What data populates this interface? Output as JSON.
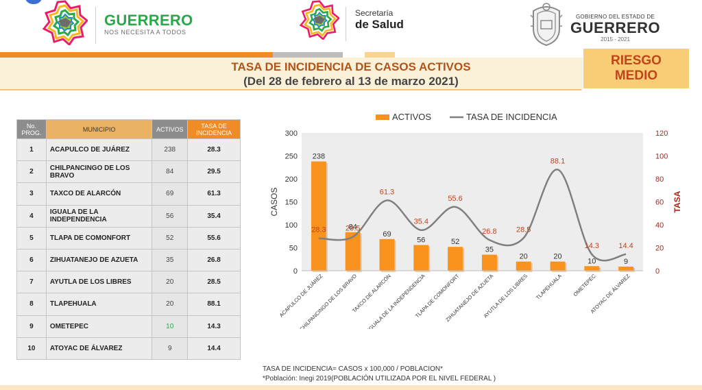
{
  "header": {
    "brand_title": "GUERRERO",
    "brand_sub": "NOS NECESITA A TODOS",
    "secretaria_line1": "Secretaría",
    "secretaria_line2": "de Salud",
    "gob_line1": "GOBIERNO DEL ESTADO DE",
    "gob_line2": "GUERRERO",
    "gob_line3": "2015 - 2021"
  },
  "title": {
    "line1": "TASA DE INCIDENCIA DE CASOS ACTIVOS",
    "line2": "(Del 28 de febrero al 13 de marzo 2021)"
  },
  "risk": {
    "line1": "RIESGO",
    "line2": "MEDIO"
  },
  "table": {
    "headers": {
      "no_1": "No.",
      "no_2": "PROG.",
      "municipio": "MUNICIPIO",
      "activos": "ACTIVOS",
      "tasa_1": "TASA DE",
      "tasa_2": "INCIDENCIA"
    },
    "rows": [
      {
        "no": "1",
        "municipio": "ACAPULCO DE JUÁREZ",
        "activos": "238",
        "tasa": "28.3"
      },
      {
        "no": "2",
        "municipio": "CHILPANCINGO DE LOS BRAVO",
        "activos": "84",
        "tasa": "29.5"
      },
      {
        "no": "3",
        "municipio": "TAXCO DE ALARCÓN",
        "activos": "69",
        "tasa": "61.3"
      },
      {
        "no": "4",
        "municipio": "IGUALA DE LA INDEPENDENCIA",
        "activos": "56",
        "tasa": "35.4"
      },
      {
        "no": "5",
        "municipio": "TLAPA DE COMONFORT",
        "activos": "52",
        "tasa": "55.6"
      },
      {
        "no": "6",
        "municipio": "ZIHUATANEJO DE AZUETA",
        "activos": "35",
        "tasa": "26.8"
      },
      {
        "no": "7",
        "municipio": "AYUTLA DE LOS LIBRES",
        "activos": "20",
        "tasa": "28.5"
      },
      {
        "no": "8",
        "municipio": "TLAPEHUALA",
        "activos": "20",
        "tasa": "88.1"
      },
      {
        "no": "9",
        "municipio": "OMETEPEC",
        "activos": "10",
        "tasa": "14.3"
      },
      {
        "no": "10",
        "municipio": "ATOYAC DE ÁLVAREZ",
        "activos": "9",
        "tasa": "14.4"
      }
    ]
  },
  "chart_data": {
    "type": "bar",
    "categories": [
      "ACAPULCO DE JUÁREZ",
      "CHILPANCINGO DE LOS BRAVO",
      "TAXCO DE ALARCÓN",
      "IGUALA DE LA INDEPENDENCIA",
      "TLAPA DE COMONFORT",
      "ZIHUATANEJO DE AZUETA",
      "AYUTLA DE LOS LIBRES",
      "TLAPEHUALA",
      "OMETEPEC",
      "ATOYAC DE ÁLVAREZ"
    ],
    "series": [
      {
        "name": "ACTIVOS",
        "type": "bar",
        "axis": "left",
        "values": [
          238,
          84,
          69,
          56,
          52,
          35,
          20,
          20,
          10,
          9
        ],
        "color": "#f7931e"
      },
      {
        "name": "TASA DE INCIDENCIA",
        "type": "line",
        "axis": "right",
        "values": [
          28.3,
          29.5,
          61.3,
          35.4,
          55.6,
          26.8,
          28.5,
          88.1,
          14.3,
          14.4
        ],
        "color": "#7f7f7f"
      }
    ],
    "ylabel": "CASOS",
    "y2label": "TASA",
    "ylim": [
      0,
      300
    ],
    "y2lim": [
      0,
      120
    ],
    "yticks": [
      0,
      50,
      100,
      150,
      200,
      250,
      300
    ],
    "y2ticks": [
      0,
      20,
      40,
      60,
      80,
      100,
      120
    ],
    "legend_position": "top",
    "grid": false
  },
  "footnotes": {
    "formula": "TASA DE INCIDENCIA= CASOS x 100,000 / POBLACION*",
    "source": "*Población: Inegi 2019(POBLACIÓN UTILIZADA POR EL NIVEL FEDERAL )"
  },
  "colors": {
    "orange": "#f7931e",
    "gray_line": "#7f7f7f",
    "title_orange": "#b0541a",
    "risk_bg": "#f9cd75",
    "tasa_label": "#c0451b",
    "right_axis": "#a8261b"
  }
}
